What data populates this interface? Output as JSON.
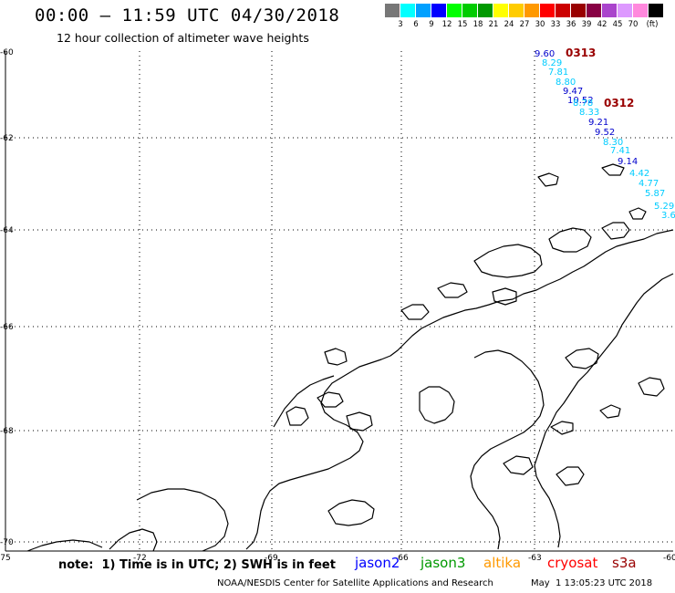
{
  "header": {
    "title": "00:00 – 11:59 UTC 04/30/2018",
    "subtitle": "12 hour collection of altimeter wave heights"
  },
  "legend": {
    "colors": [
      "#777777",
      "#00ffff",
      "#00a0ff",
      "#0000ff",
      "#00ff00",
      "#00cc00",
      "#009900",
      "#ffff00",
      "#ffcc00",
      "#ff9900",
      "#ff0000",
      "#cc0000",
      "#990000",
      "#880044",
      "#aa44cc",
      "#dd99ff",
      "#ff88dd",
      "#000000"
    ],
    "labels": [
      "3",
      "6",
      "9",
      "12",
      "15",
      "18",
      "21",
      "24",
      "27",
      "30",
      "33",
      "36",
      "39",
      "42",
      "45",
      "70",
      "(ft)"
    ]
  },
  "map": {
    "lat_labels": [
      "-60",
      "-62",
      "-64",
      "-66",
      "-68",
      "-70"
    ],
    "lon_labels": [
      "-75",
      "-72",
      "-69",
      "-66",
      "-63",
      "-60"
    ],
    "passes": [
      "0313",
      "0312"
    ],
    "wave_heights": [
      "9.60",
      "8.29",
      "7.81",
      "8.80",
      "9.47",
      "10.52",
      "8.78",
      "8.33",
      "9.21",
      "9.52",
      "8.30",
      "7.41",
      "9.14",
      "4.42",
      "4.77",
      "5.87",
      "5.29",
      "3.6"
    ],
    "wave_colors": [
      "#0000cc",
      "#00ccff",
      "#00ccff",
      "#00ccff",
      "#0000cc",
      "#0000cc",
      "#00ccff",
      "#00ccff",
      "#0000cc",
      "#0000cc",
      "#00ccff",
      "#00ccff",
      "#0000cc",
      "#00ccff",
      "#00ccff",
      "#00ccff",
      "#00ccff",
      "#00ccff"
    ],
    "pass_color": "#990000"
  },
  "footer": {
    "note": "note:  1) Time is in UTC; 2) SWH is in feet",
    "satellites": [
      {
        "name": "jason2",
        "color": "#0000ff"
      },
      {
        "name": "jason3",
        "color": "#009900"
      },
      {
        "name": "altika",
        "color": "#ff9900"
      },
      {
        "name": "cryosat",
        "color": "#ff0000"
      },
      {
        "name": "s3a",
        "color": "#990000"
      }
    ],
    "credit": "NOAA/NESDIS Center for Satellite Applications and Research",
    "created": "May  1 13:05:23 UTC 2018"
  }
}
